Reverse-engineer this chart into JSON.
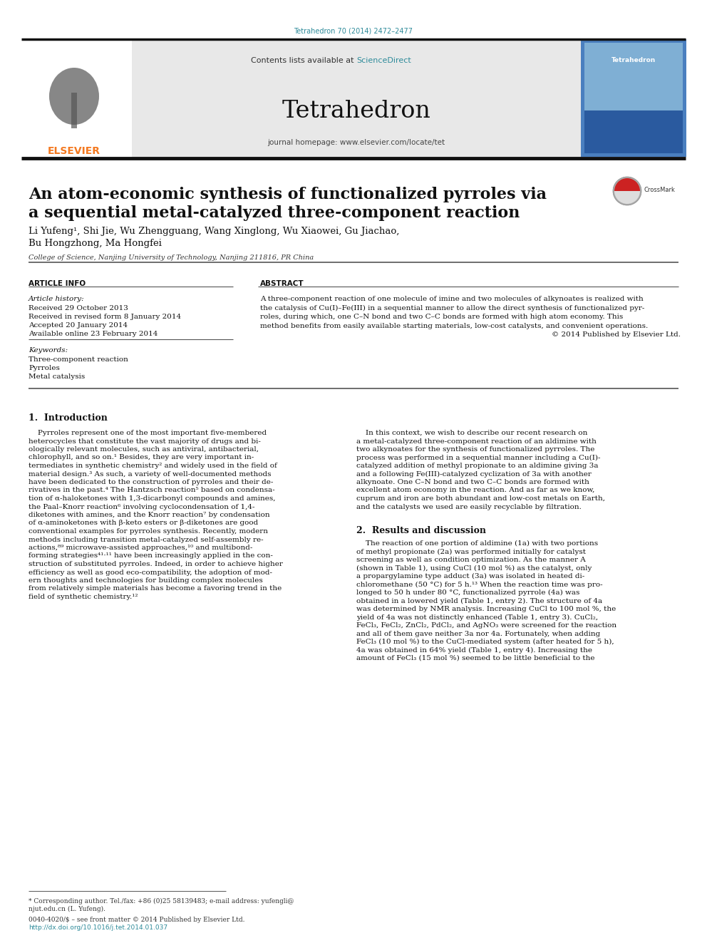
{
  "page_bg": "#ffffff",
  "top_citation": "Tetrahedron 70 (2014) 2472–2477",
  "top_citation_color": "#2e8b9a",
  "journal_name": "Tetrahedron",
  "header_bg": "#e8e8e8",
  "contents_text": "Contents lists available at ",
  "sciencedirect_text": "ScienceDirect",
  "sciencedirect_color": "#2e8b9a",
  "journal_homepage": "journal homepage: www.elsevier.com/locate/tet",
  "article_title_line1": "An atom-economic synthesis of functionalized pyrroles via",
  "article_title_line2": "a sequential metal-catalyzed three-component reaction",
  "authors": "Li Yufeng¹, Shi Jie, Wu Zhengguang, Wang Xinglong, Wu Xiaowei, Gu Jiachao,",
  "authors2": "Bu Hongzhong, Ma Hongfei",
  "affiliation": "College of Science, Nanjing University of Technology, Nanjing 211816, PR China",
  "article_info_header": "ARTICLE INFO",
  "abstract_header": "ABSTRACT",
  "article_history_label": "Article history:",
  "received": "Received 29 October 2013",
  "revised": "Received in revised form 8 January 2014",
  "accepted": "Accepted 20 January 2014",
  "available": "Available online 23 February 2014",
  "keywords_label": "Keywords:",
  "keyword1": "Three-component reaction",
  "keyword2": "Pyrroles",
  "keyword3": "Metal catalysis",
  "abstract_lines": [
    "A three-component reaction of one molecule of imine and two molecules of alkynoates is realized with",
    "the catalysis of Cu(I)–Fe(III) in a sequential manner to allow the direct synthesis of functionalized pyr-",
    "roles, during which, one C–N bond and two C–C bonds are formed with high atom economy. This",
    "method benefits from easily available starting materials, low-cost catalysts, and convenient operations.",
    "© 2014 Published by Elsevier Ltd."
  ],
  "section1_title": "1.  Introduction",
  "intro_left": [
    "    Pyrroles represent one of the most important five-membered",
    "heterocycles that constitute the vast majority of drugs and bi-",
    "ologically relevant molecules, such as antiviral, antibacterial,",
    "chlorophyll, and so on.¹ Besides, they are very important in-",
    "termediates in synthetic chemistry² and widely used in the field of",
    "material design.³ As such, a variety of well-documented methods",
    "have been dedicated to the construction of pyrroles and their de-",
    "rivatives in the past.⁴ The Hantzsch reaction⁵ based on condensa-",
    "tion of α-haloketones with 1,3-dicarbonyl compounds and amines,",
    "the Paal–Knorr reaction⁶ involving cyclocondensation of 1,4-",
    "diketones with amines, and the Knorr reaction⁷ by condensation",
    "of α-aminoketones with β-keto esters or β-diketones are good",
    "conventional examples for pyrroles synthesis. Recently, modern",
    "methods including transition metal-catalyzed self-assembly re-",
    "actions,⁸⁹ microwave-assisted approaches,¹⁰ and multibond-",
    "forming strategies⁴¹·¹¹ have been increasingly applied in the con-",
    "struction of substituted pyrroles. Indeed, in order to achieve higher",
    "efficiency as well as good eco-compatibility, the adoption of mod-",
    "ern thoughts and technologies for building complex molecules",
    "from relatively simple materials has become a favoring trend in the",
    "field of synthetic chemistry.¹²"
  ],
  "intro_right": [
    "    In this context, we wish to describe our recent research on",
    "a metal-catalyzed three-component reaction of an aldimine with",
    "two alkynoates for the synthesis of functionalized pyrroles. The",
    "process was performed in a sequential manner including a Cu(I)-",
    "catalyzed addition of methyl propionate to an aldimine giving 3a",
    "and a following Fe(III)-catalyzed cyclization of 3a with another",
    "alkynoate. One C–N bond and two C–C bonds are formed with",
    "excellent atom economy in the reaction. And as far as we know,",
    "cuprum and iron are both abundant and low-cost metals on Earth,",
    "and the catalysts we used are easily recyclable by filtration."
  ],
  "section2_title": "2.  Results and discussion",
  "results_lines": [
    "    The reaction of one portion of aldimine (1a) with two portions",
    "of methyl propionate (2a) was performed initially for catalyst",
    "screening as well as condition optimization. As the manner A",
    "(shown in Table 1), using CuCl (10 mol %) as the catalyst, only",
    "a propargylamine type adduct (3a) was isolated in heated di-",
    "chloromethane (50 °C) for 5 h.¹³ When the reaction time was pro-",
    "longed to 50 h under 80 °C, functionalized pyrrole (4a) was",
    "obtained in a lowered yield (Table 1, entry 2). The structure of 4a",
    "was determined by NMR analysis. Increasing CuCl to 100 mol %, the",
    "yield of 4a was not distinctly enhanced (Table 1, entry 3). CuCl₂,",
    "FeCl₃, FeCl₂, ZnCl₂, PdCl₂, and AgNO₃ were screened for the reaction",
    "and all of them gave neither 3a nor 4a. Fortunately, when adding",
    "FeCl₃ (10 mol %) to the CuCl-mediated system (after heated for 5 h),",
    "4a was obtained in 64% yield (Table 1, entry 4). Increasing the",
    "amount of FeCl₃ (15 mol %) seemed to be little beneficial to the"
  ],
  "footer_star": "* Corresponding author. Tel./fax: +86 (0)25 58139483; e-mail address: yufengli@",
  "footer_star2": "njut.edu.cn (L. Yufeng).",
  "footer_copy": "0040-4020/$ – see front matter © 2014 Published by Elsevier Ltd.",
  "footer_doi": "http://dx.doi.org/10.1016/j.tet.2014.01.037",
  "elsevier_orange": "#f47920",
  "teal_color": "#2e8b9a",
  "table_link_color": "#2e8b9a"
}
